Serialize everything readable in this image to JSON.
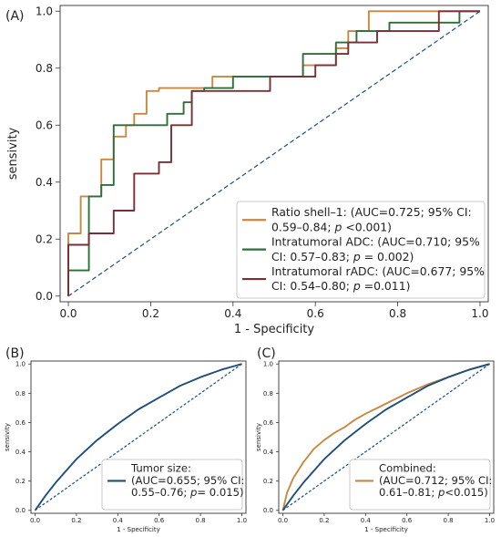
{
  "figure": {
    "panel_labels": [
      "(A)",
      "(B)",
      "(C)"
    ]
  },
  "chart_data": [
    {
      "panel": "(A)",
      "type": "line",
      "xlabel": "1 - Specificity",
      "ylabel": "sensivity",
      "xlim": [
        -0.02,
        1.02
      ],
      "ylim": [
        -0.02,
        1.02
      ],
      "xticks": [
        "0.0",
        "0.2",
        "0.4",
        "0.6",
        "0.8",
        "1.0"
      ],
      "yticks": [
        "0.0",
        "0.2",
        "0.4",
        "0.6",
        "0.8",
        "1.0"
      ],
      "grid": false,
      "legend_position": "bottom-right",
      "series": [
        {
          "name": "Ratio shell–1",
          "legend_lines": [
            "Ratio shell–1: (AUC=0.725; 95% CI:",
            "0.59–0.84; ",
            "p",
            " <0.001)"
          ],
          "color": "#C8883F",
          "x": [
            0,
            0,
            0.03,
            0.03,
            0.08,
            0.08,
            0.11,
            0.11,
            0.14,
            0.14,
            0.16,
            0.16,
            0.19,
            0.19,
            0.22,
            0.22,
            0.35,
            0.35,
            0.57,
            0.57,
            0.65,
            0.65,
            0.68,
            0.68,
            0.73,
            0.73,
            1.0
          ],
          "y": [
            0,
            0.22,
            0.22,
            0.35,
            0.35,
            0.48,
            0.48,
            0.56,
            0.56,
            0.6,
            0.6,
            0.64,
            0.64,
            0.72,
            0.72,
            0.73,
            0.73,
            0.77,
            0.77,
            0.81,
            0.81,
            0.87,
            0.87,
            0.93,
            0.93,
            1.0,
            1.0
          ]
        },
        {
          "name": "Intratumoral ADC",
          "legend_lines": [
            "Intratumoral ADC: (AUC=0.710; 95%",
            "CI: 0.57–0.83; ",
            "p",
            " = 0.002)"
          ],
          "color": "#2E6E3A",
          "x": [
            0,
            0,
            0.05,
            0.05,
            0.08,
            0.08,
            0.11,
            0.11,
            0.24,
            0.24,
            0.28,
            0.28,
            0.3,
            0.3,
            0.33,
            0.33,
            0.4,
            0.4,
            0.57,
            0.57,
            0.65,
            0.65,
            0.7,
            0.7,
            0.78,
            0.78,
            0.95,
            0.95,
            1.0
          ],
          "y": [
            0,
            0.09,
            0.09,
            0.35,
            0.35,
            0.39,
            0.39,
            0.6,
            0.6,
            0.64,
            0.64,
            0.68,
            0.68,
            0.72,
            0.72,
            0.73,
            0.73,
            0.77,
            0.77,
            0.85,
            0.85,
            0.89,
            0.89,
            0.93,
            0.93,
            0.96,
            0.96,
            1.0,
            1.0
          ]
        },
        {
          "name": "Intratumoral rADC",
          "legend_lines": [
            "Intratumoral rADC: (AUC=0.677; 95%",
            "CI: 0.54–0.80; ",
            "p",
            " =0.011)"
          ],
          "color": "#7B2E35",
          "x": [
            0,
            0,
            0.05,
            0.05,
            0.11,
            0.11,
            0.16,
            0.16,
            0.22,
            0.22,
            0.25,
            0.25,
            0.3,
            0.3,
            0.49,
            0.49,
            0.6,
            0.6,
            0.65,
            0.65,
            0.68,
            0.68,
            0.75,
            0.75,
            0.9,
            0.9,
            1.0
          ],
          "y": [
            0,
            0.18,
            0.18,
            0.22,
            0.22,
            0.3,
            0.3,
            0.43,
            0.43,
            0.47,
            0.47,
            0.6,
            0.6,
            0.72,
            0.72,
            0.77,
            0.77,
            0.81,
            0.81,
            0.85,
            0.85,
            0.89,
            0.89,
            0.93,
            0.93,
            1.0,
            1.0
          ]
        },
        {
          "name": "",
          "color": "#1F4E79",
          "dashed": true,
          "x": [
            0,
            1
          ],
          "y": [
            0,
            1
          ]
        }
      ]
    },
    {
      "panel": "(B)",
      "type": "line",
      "xlabel": "1 - Specificity",
      "ylabel": "sensivity",
      "xlim": [
        -0.02,
        1.02
      ],
      "ylim": [
        -0.02,
        1.02
      ],
      "xticks": [
        "0.0",
        "0.2",
        "0.4",
        "0.6",
        "0.8",
        "1.0"
      ],
      "yticks": [
        "0.0",
        "0.2",
        "0.4",
        "0.6",
        "0.8",
        "1.0"
      ],
      "grid": false,
      "legend_position": "bottom-right",
      "series": [
        {
          "name": "Tumor size",
          "legend_lines": [
            "Tumor size:",
            "(AUC=0.655; 95% CI:",
            "0.55–0.76; ",
            "p",
            "= 0.015)"
          ],
          "color": "#1F4E79",
          "x": [
            0,
            0.05,
            0.1,
            0.15,
            0.2,
            0.3,
            0.4,
            0.5,
            0.6,
            0.7,
            0.8,
            0.9,
            1.0
          ],
          "y": [
            0,
            0.1,
            0.19,
            0.27,
            0.35,
            0.48,
            0.59,
            0.69,
            0.77,
            0.85,
            0.91,
            0.96,
            1.0
          ]
        },
        {
          "name": "",
          "color": "#1F4E79",
          "dashed": true,
          "x": [
            0,
            1
          ],
          "y": [
            0,
            1
          ]
        }
      ]
    },
    {
      "panel": "(C)",
      "type": "line",
      "xlabel": "1 - Specificity",
      "ylabel": "sensivity",
      "xlim": [
        -0.02,
        1.02
      ],
      "ylim": [
        -0.02,
        1.02
      ],
      "xticks": [
        "0.0",
        "0.2",
        "0.4",
        "0.6",
        "0.8",
        "1.0"
      ],
      "yticks": [
        "0.0",
        "0.2",
        "0.4",
        "0.6",
        "0.8",
        "1.0"
      ],
      "grid": false,
      "legend_position": "bottom-right",
      "series": [
        {
          "name": "Combined",
          "legend_lines": [
            "Combined:",
            "(AUC=0.712; 95% CI:",
            "0.61–0.81; ",
            "p",
            "<0.015)"
          ],
          "color": "#C8883F",
          "x": [
            0,
            0.02,
            0.05,
            0.1,
            0.15,
            0.2,
            0.25,
            0.3,
            0.35,
            0.4,
            0.5,
            0.6,
            0.7,
            0.8,
            0.9,
            1.0
          ],
          "y": [
            0,
            0.12,
            0.22,
            0.33,
            0.42,
            0.48,
            0.53,
            0.57,
            0.62,
            0.66,
            0.73,
            0.8,
            0.86,
            0.91,
            0.96,
            1.0
          ]
        },
        {
          "name": "",
          "color": "#1F4E79",
          "x": [
            0,
            0.05,
            0.1,
            0.15,
            0.2,
            0.3,
            0.4,
            0.5,
            0.6,
            0.7,
            0.8,
            0.9,
            1.0
          ],
          "y": [
            0,
            0.1,
            0.19,
            0.27,
            0.35,
            0.48,
            0.59,
            0.69,
            0.77,
            0.85,
            0.91,
            0.96,
            1.0
          ]
        },
        {
          "name": "",
          "color": "#1F4E79",
          "dashed": true,
          "x": [
            0,
            1
          ],
          "y": [
            0,
            1
          ]
        }
      ]
    }
  ]
}
